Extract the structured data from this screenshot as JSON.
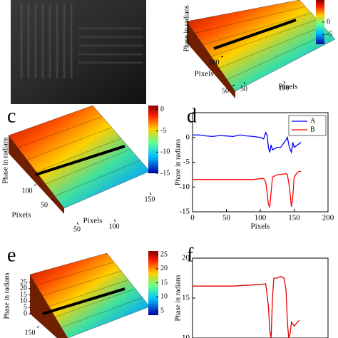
{
  "chart_data": [
    {
      "type": "image"
    },
    {
      "type": "surface",
      "clim": [
        -9,
        9
      ],
      "cticks": [
        -5,
        0
      ],
      "zlabel": "Phase in radians",
      "xlabel": "Pixels",
      "ylabel": "Pixels",
      "xticks": [
        50,
        100
      ],
      "yticks": [
        50,
        100
      ]
    },
    {
      "type": "surface",
      "label": "c",
      "clim": [
        -15,
        1
      ],
      "cticks": [
        -15,
        -10,
        -5,
        0
      ],
      "zlabel": "Phase in radians",
      "xlabel": "Pixels",
      "ylabel": "Pixels",
      "xticks": [
        50,
        100,
        150
      ],
      "yticks": [
        50,
        100
      ]
    },
    {
      "type": "line",
      "label": "d",
      "xlabel": "Pixels",
      "ylabel": "Phase in radians",
      "xlim": [
        0,
        200
      ],
      "ylim": [
        -15,
        5
      ],
      "xticks": [
        0,
        50,
        100,
        150,
        200
      ],
      "yticks": [
        -15,
        -10,
        -5,
        0
      ],
      "x": [
        0,
        10,
        20,
        30,
        40,
        50,
        60,
        70,
        80,
        90,
        100,
        105,
        108,
        110,
        112,
        114,
        116,
        118,
        125,
        130,
        138,
        140,
        143,
        146,
        148,
        150,
        155,
        160
      ],
      "legend": "upper right",
      "series": [
        {
          "name": "A",
          "color": "#0000ff",
          "values": [
            0.5,
            0.5,
            0.3,
            0.2,
            0.4,
            0.3,
            0.2,
            0.5,
            0.3,
            0.2,
            0,
            -0.3,
            1,
            0.5,
            -2,
            -3,
            -1.5,
            -2.5,
            -2,
            -2,
            -0.5,
            0,
            -2,
            -3,
            -1,
            -2,
            -1.5,
            -1
          ]
        },
        {
          "name": "B",
          "color": "#ff0000",
          "values": [
            -8.5,
            -8.5,
            -8.5,
            -8.5,
            -8.5,
            -8.5,
            -8.5,
            -8.5,
            -8.5,
            -8.5,
            -8.3,
            -8.3,
            -9,
            -11,
            -13.5,
            -14,
            -11,
            -8,
            -7.5,
            -7.5,
            -7.3,
            -7.5,
            -10,
            -14,
            -12,
            -8,
            -7,
            -6.8
          ]
        }
      ]
    },
    {
      "type": "surface",
      "label": "e",
      "clim": [
        3.5,
        26.3
      ],
      "cticks": [
        5,
        10,
        15,
        20,
        25
      ],
      "zlabel": "Phase in radians",
      "zticks": [
        0,
        5,
        10,
        15,
        20,
        25
      ],
      "yticks": [
        150
      ]
    },
    {
      "type": "line",
      "label": "f",
      "ylabel": "Phase in radians",
      "xlim": [
        0,
        200
      ],
      "ylim": [
        10,
        20
      ],
      "yticks": [
        10,
        15,
        20
      ],
      "x": [
        0,
        20,
        40,
        60,
        80,
        100,
        108,
        112,
        114,
        116,
        118,
        120,
        125,
        130,
        135,
        138,
        140,
        142,
        144,
        146,
        150,
        155,
        158
      ],
      "series": [
        {
          "color": "#e00000",
          "values": [
            16.5,
            16.5,
            16.5,
            16.5,
            16.6,
            16.7,
            16.8,
            14,
            11,
            10,
            15,
            17.5,
            17.5,
            17.7,
            17.5,
            16,
            12,
            10,
            10.5,
            12,
            11.5,
            12,
            12.2
          ]
        }
      ]
    }
  ]
}
